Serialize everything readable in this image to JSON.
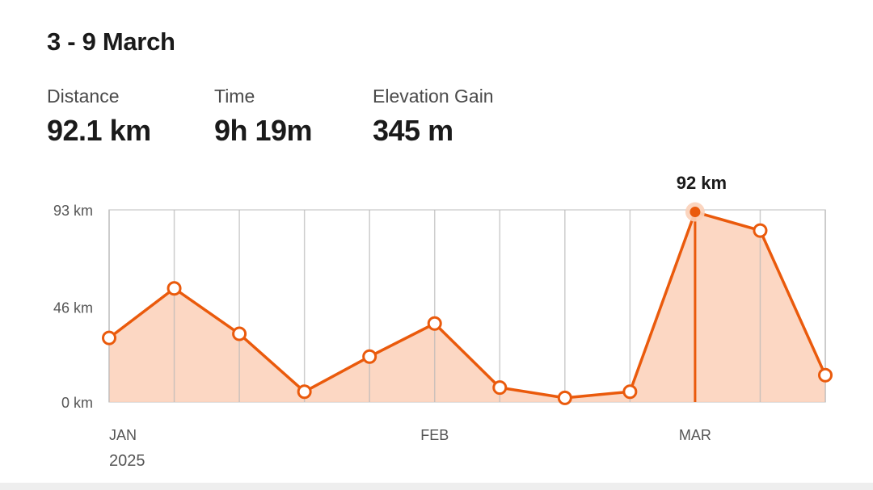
{
  "header": {
    "title": "3 - 9 March"
  },
  "stats": [
    {
      "label": "Distance",
      "value": "92.1 km"
    },
    {
      "label": "Time",
      "value": "9h 19m"
    },
    {
      "label": "Elevation Gain",
      "value": "345 m"
    }
  ],
  "chart_data": {
    "type": "area",
    "unit": "km",
    "y_ticks": [
      {
        "value": 0,
        "label": "0 km"
      },
      {
        "value": 46,
        "label": "46 km"
      },
      {
        "value": 93,
        "label": "93 km"
      }
    ],
    "ylim": [
      0,
      93
    ],
    "x_labels": [
      {
        "index": 0,
        "label": "JAN"
      },
      {
        "index": 5,
        "label": "FEB"
      },
      {
        "index": 9,
        "label": "MAR"
      }
    ],
    "year_label": "2025",
    "values": [
      31,
      55,
      33,
      5,
      22,
      38,
      7,
      2,
      5,
      92,
      83,
      13
    ],
    "selected_index": 9,
    "selected_label": "92 km",
    "grid": true,
    "colors": {
      "line": "#ea5a0c",
      "fill": "#fbd0b8",
      "grid": "#d4d4d4"
    }
  }
}
